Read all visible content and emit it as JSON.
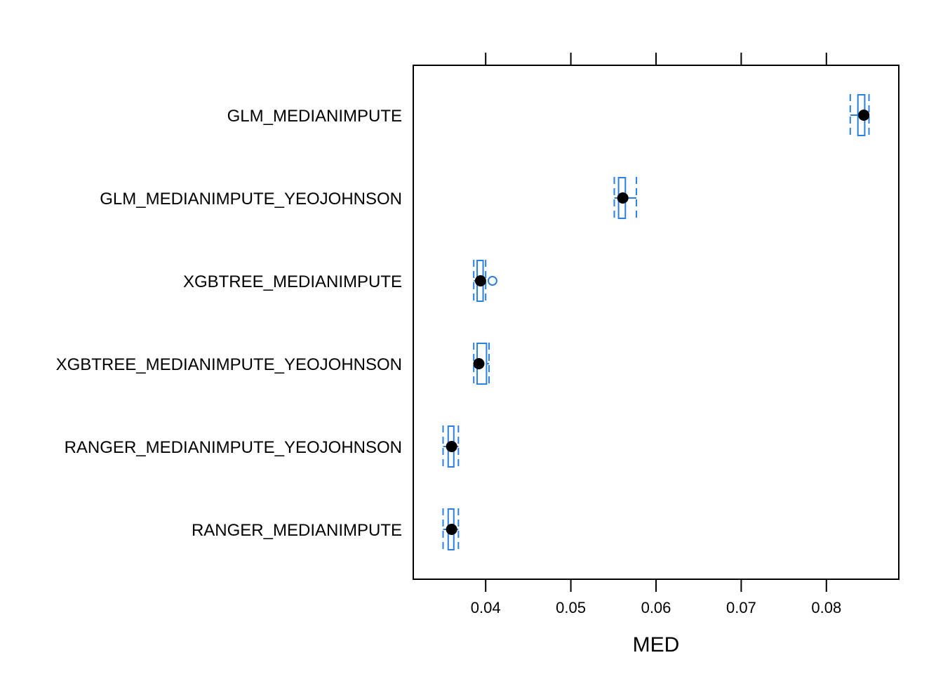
{
  "chart_data": {
    "type": "boxplot",
    "orientation": "horizontal",
    "xlabel": "MED",
    "xlim": [
      0.0315,
      0.0885
    ],
    "xticks": [
      0.04,
      0.05,
      0.06,
      0.07,
      0.08
    ],
    "xtick_labels": [
      "0.04",
      "0.05",
      "0.06",
      "0.07",
      "0.08"
    ],
    "categories": [
      "GLM_MEDIANIMPUTE",
      "GLM_MEDIANIMPUTE_YEOJOHNSON",
      "XGBTREE_MEDIANIMPUTE",
      "XGBTREE_MEDIANIMPUTE_YEOJOHNSON",
      "RANGER_MEDIANIMPUTE_YEOJOHNSON",
      "RANGER_MEDIANIMPUTE"
    ],
    "boxes": [
      {
        "min": 0.0828,
        "q1": 0.0837,
        "median": 0.0844,
        "q3": 0.0845,
        "max": 0.085,
        "outliers": []
      },
      {
        "min": 0.0551,
        "q1": 0.0556,
        "median": 0.0561,
        "q3": 0.0564,
        "max": 0.0577,
        "outliers": []
      },
      {
        "min": 0.0386,
        "q1": 0.039,
        "median": 0.0394,
        "q3": 0.0397,
        "max": 0.04,
        "outliers": [
          0.0408
        ]
      },
      {
        "min": 0.0386,
        "q1": 0.039,
        "median": 0.0392,
        "q3": 0.0401,
        "max": 0.0404,
        "outliers": []
      },
      {
        "min": 0.035,
        "q1": 0.0356,
        "median": 0.036,
        "q3": 0.0362,
        "max": 0.0368,
        "outliers": []
      },
      {
        "min": 0.035,
        "q1": 0.0356,
        "median": 0.036,
        "q3": 0.0362,
        "max": 0.0368,
        "outliers": []
      }
    ],
    "box_color": "#2a7fe0",
    "median_dot_color": "#000000",
    "grid": false
  }
}
